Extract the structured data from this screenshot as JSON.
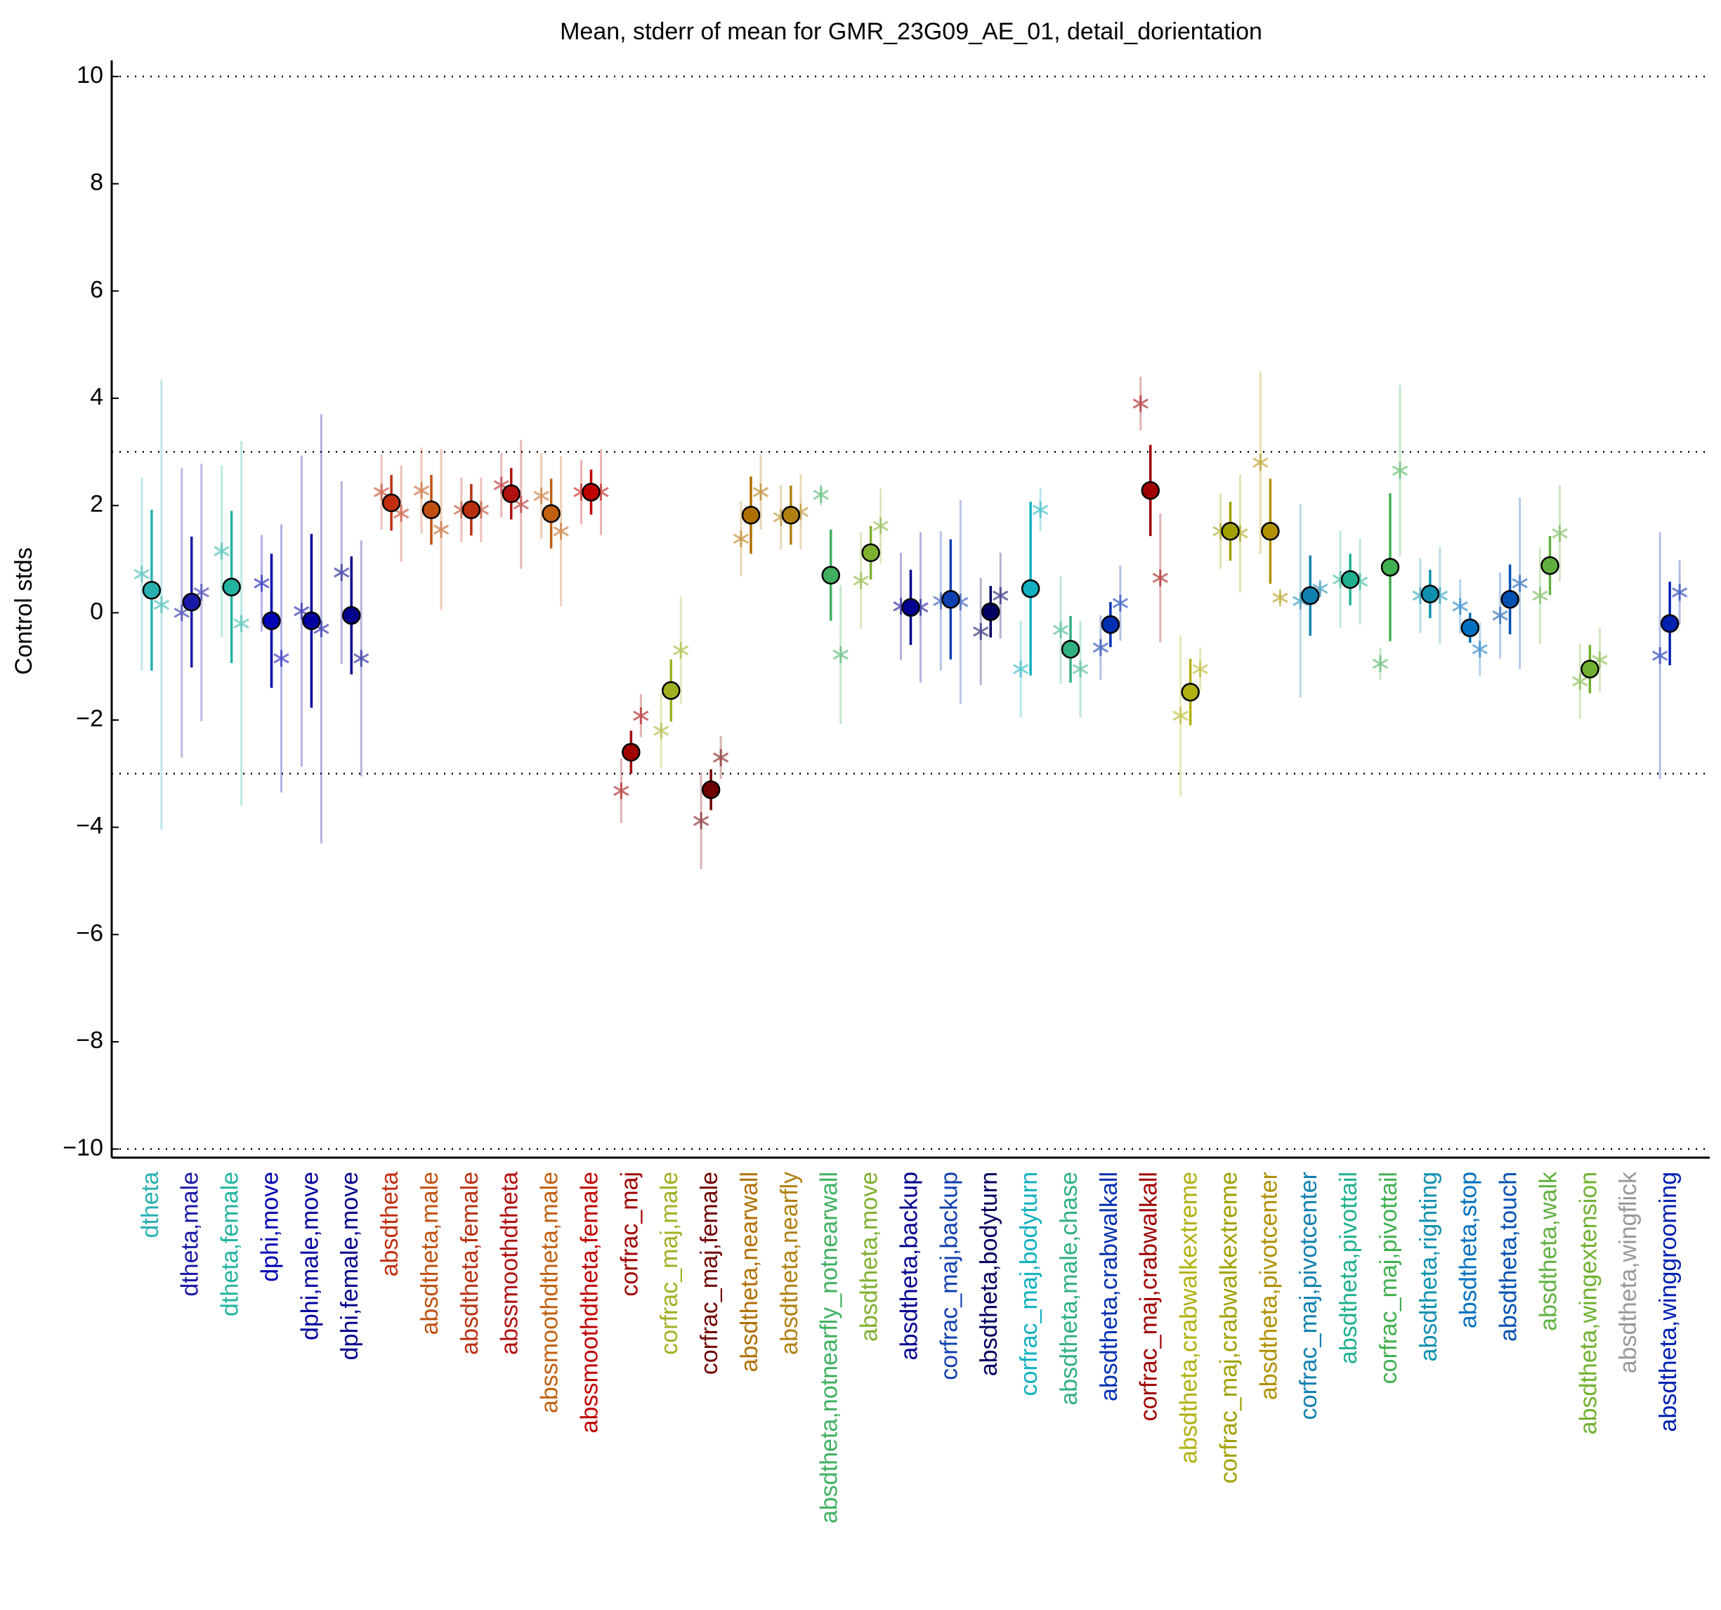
{
  "chart_data": {
    "type": "errorbar",
    "title": "Mean, stderr of mean for GMR_23G09_AE_01, detail_dorientation",
    "ylabel": "Control stds",
    "categories": [
      "dtheta",
      "dtheta,male",
      "dtheta,female",
      "dphi,move",
      "dphi,male,move",
      "dphi,female,move",
      "absdtheta",
      "absdtheta,male",
      "absdtheta,female",
      "abssmoothdtheta",
      "abssmoothdtheta,male",
      "abssmoothdtheta,female",
      "corfrac_maj",
      "corfrac_maj,male",
      "corfrac_maj,female",
      "absdtheta,nearwall",
      "absdtheta,nearfly",
      "absdtheta,notnearfly_notnearwall",
      "absdtheta,move",
      "absdtheta,backup",
      "corfrac_maj,backup",
      "absdtheta,bodyturn",
      "corfrac_maj,bodyturn",
      "absdtheta,male,chase",
      "absdtheta,crabwalkall",
      "corfrac_maj,crabwalkall",
      "absdtheta,crabwalkextreme",
      "corfrac_maj,crabwalkextreme",
      "absdtheta,pivotcenter",
      "corfrac_maj,pivotcenter",
      "absdtheta,pivottail",
      "corfrac_maj,pivottail",
      "absdtheta,righting",
      "absdtheta,stop",
      "absdtheta,touch",
      "absdtheta,walk",
      "absdtheta,wingextension",
      "absdtheta,wingflick",
      "absdtheta,winggrooming"
    ],
    "colors": [
      "#2ab0b0",
      "#1a1aa8",
      "#22b4a0",
      "#0000b4",
      "#0000a0",
      "#00008b",
      "#c03010",
      "#c05010",
      "#b83010",
      "#b01010",
      "#c06010",
      "#c00000",
      "#a00000",
      "#a0b020",
      "#700000",
      "#b07000",
      "#b08010",
      "#40b060",
      "#80b030",
      "#000090",
      "#1040b0",
      "#000060",
      "#10b0c0",
      "#30b080",
      "#0030b0",
      "#a00000",
      "#b0b010",
      "#a0a000",
      "#b09000",
      "#1080b0",
      "#20b090",
      "#40b050",
      "#1090b0",
      "#0070c0",
      "#0050b0",
      "#60b040",
      "#70b030",
      "#999999",
      "#0020b0"
    ],
    "series": [
      {
        "values": [
          0.42,
          0.2,
          0.48,
          -0.15,
          -0.15,
          -0.05,
          2.05,
          1.92,
          1.92,
          2.22,
          1.85,
          2.25,
          -2.6,
          -1.45,
          -3.3,
          1.82,
          1.82,
          0.7,
          1.12,
          0.1,
          0.25,
          0.02,
          0.45,
          -0.68,
          -0.22,
          2.28,
          -1.48,
          1.52,
          1.52,
          0.32,
          0.62,
          0.85,
          0.35,
          -0.28,
          0.25,
          0.88,
          -1.05,
          null,
          -0.2
        ],
        "errors": [
          1.5,
          1.22,
          1.42,
          1.25,
          1.62,
          1.1,
          0.52,
          0.65,
          0.48,
          0.48,
          0.65,
          0.42,
          0.4,
          0.58,
          0.38,
          0.72,
          0.55,
          0.85,
          0.5,
          0.7,
          1.12,
          0.48,
          1.62,
          0.62,
          0.42,
          0.85,
          0.62,
          0.55,
          0.98,
          0.75,
          0.48,
          1.38,
          0.45,
          0.28,
          0.65,
          0.55,
          0.45,
          null,
          0.78
        ]
      },
      {
        "values": [
          0.72,
          0.0,
          1.15,
          0.55,
          0.03,
          0.75,
          2.25,
          2.28,
          1.92,
          2.38,
          2.18,
          2.25,
          -3.32,
          -2.2,
          -3.88,
          1.38,
          1.78,
          2.2,
          0.6,
          0.12,
          0.22,
          -0.35,
          -1.05,
          -0.32,
          -0.65,
          3.9,
          -1.92,
          1.52,
          2.8,
          0.22,
          0.62,
          -0.95,
          0.32,
          0.12,
          -0.05,
          0.32,
          -1.28,
          null,
          -0.8
        ],
        "errors": [
          1.8,
          2.7,
          1.6,
          0.9,
          2.9,
          1.7,
          0.7,
          0.8,
          0.6,
          0.6,
          0.8,
          0.6,
          0.6,
          0.7,
          0.9,
          0.7,
          0.6,
          0.2,
          0.9,
          1.0,
          1.3,
          1.0,
          0.9,
          1.0,
          0.6,
          0.5,
          1.5,
          0.7,
          1.7,
          1.8,
          0.9,
          0.3,
          0.7,
          0.5,
          0.8,
          0.9,
          0.7,
          null,
          2.3
        ]
      },
      {
        "values": [
          0.15,
          0.38,
          -0.2,
          -0.85,
          -0.3,
          -0.85,
          1.85,
          1.55,
          1.92,
          2.02,
          1.52,
          2.25,
          -1.92,
          -0.7,
          -2.7,
          2.25,
          1.88,
          -0.78,
          1.62,
          0.1,
          0.2,
          0.32,
          1.92,
          -1.05,
          0.18,
          0.65,
          -1.05,
          1.48,
          0.28,
          0.45,
          0.58,
          2.65,
          0.32,
          -0.68,
          0.55,
          1.48,
          -0.88,
          null,
          0.38
        ],
        "errors": [
          4.2,
          2.4,
          3.4,
          2.5,
          4.0,
          2.2,
          0.9,
          1.5,
          0.6,
          1.2,
          1.4,
          0.8,
          0.4,
          1.0,
          0.4,
          0.7,
          0.7,
          1.3,
          0.7,
          1.4,
          1.9,
          0.8,
          0.4,
          0.9,
          0.7,
          1.2,
          0.4,
          1.1,
          0.1,
          0.1,
          0.8,
          1.6,
          0.9,
          0.5,
          1.6,
          0.9,
          0.6,
          null,
          0.6
        ]
      }
    ],
    "ylim": [
      -10.16,
      10.3
    ],
    "yticks": [
      {
        "value": -10,
        "label": "−10"
      },
      {
        "value": -8,
        "label": "−8"
      },
      {
        "value": -6,
        "label": "−6"
      },
      {
        "value": -4,
        "label": "−4"
      },
      {
        "value": -2,
        "label": "−2"
      },
      0,
      2,
      4,
      6,
      8,
      10
    ],
    "hlines": [
      10,
      3,
      -3,
      -10
    ],
    "xlim": [
      0,
      40
    ]
  }
}
